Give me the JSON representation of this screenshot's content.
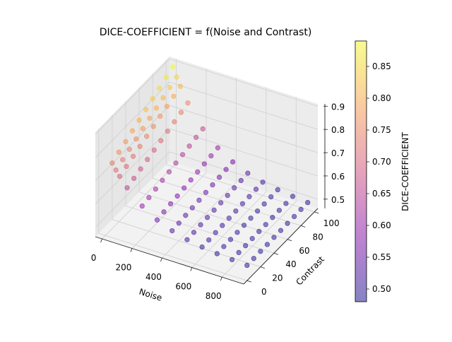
{
  "chart_data": {
    "type": "scatter",
    "projection": "3d",
    "title": "DICE-COEFFICIENT = f(Noise and Contrast)",
    "xlabel": "Noise",
    "ylabel": "Contrast",
    "zlabel": "",
    "xlim": [
      -45,
      945
    ],
    "ylim": [
      -5,
      105
    ],
    "zlim": [
      0.46,
      0.91
    ],
    "xticks": [
      0,
      200,
      400,
      600,
      800
    ],
    "yticks": [
      0,
      20,
      40,
      60,
      80,
      100
    ],
    "zticks": [
      0.5,
      0.6,
      0.7,
      0.8,
      0.9
    ],
    "grid": true,
    "colormap": "plasma",
    "alpha": 0.5,
    "noise": [
      0,
      25,
      50,
      100,
      200,
      300,
      400,
      500,
      600,
      700,
      800,
      900
    ],
    "contrast": [
      10,
      20,
      30,
      40,
      50,
      60,
      70,
      80,
      90,
      100
    ],
    "dice": [
      [
        0.742,
        0.759,
        0.775,
        0.792,
        0.808,
        0.824,
        0.841,
        0.857,
        0.874,
        0.89
      ],
      [
        0.717,
        0.732,
        0.747,
        0.762,
        0.777,
        0.792,
        0.806,
        0.821,
        0.836,
        0.851
      ],
      [
        0.695,
        0.708,
        0.722,
        0.735,
        0.749,
        0.762,
        0.776,
        0.789,
        0.803,
        0.816
      ],
      [
        0.656,
        0.667,
        0.678,
        0.689,
        0.7,
        0.711,
        0.722,
        0.733,
        0.744,
        0.755
      ],
      [
        0.598,
        0.605,
        0.612,
        0.62,
        0.627,
        0.635,
        0.642,
        0.649,
        0.657,
        0.664
      ],
      [
        0.559,
        0.564,
        0.569,
        0.573,
        0.578,
        0.583,
        0.588,
        0.593,
        0.598,
        0.603
      ],
      [
        0.533,
        0.536,
        0.54,
        0.543,
        0.546,
        0.55,
        0.553,
        0.556,
        0.56,
        0.563
      ],
      [
        0.515,
        0.517,
        0.52,
        0.522,
        0.524,
        0.526,
        0.528,
        0.531,
        0.533,
        0.535
      ],
      [
        0.504,
        0.505,
        0.507,
        0.508,
        0.51,
        0.511,
        0.513,
        0.514,
        0.516,
        0.517
      ],
      [
        0.496,
        0.497,
        0.498,
        0.499,
        0.5,
        0.501,
        0.502,
        0.503,
        0.504,
        0.505
      ],
      [
        0.491,
        0.492,
        0.492,
        0.493,
        0.494,
        0.494,
        0.495,
        0.496,
        0.496,
        0.497
      ],
      [
        0.487,
        0.487,
        0.488,
        0.488,
        0.489,
        0.489,
        0.49,
        0.49,
        0.491,
        0.491
      ]
    ],
    "colorbar": {
      "label": "DICE-COEFFICIENT",
      "range": [
        0.48,
        0.89
      ],
      "ticks": [
        "0.50",
        "0.55",
        "0.60",
        "0.65",
        "0.70",
        "0.75",
        "0.80",
        "0.85"
      ]
    }
  }
}
